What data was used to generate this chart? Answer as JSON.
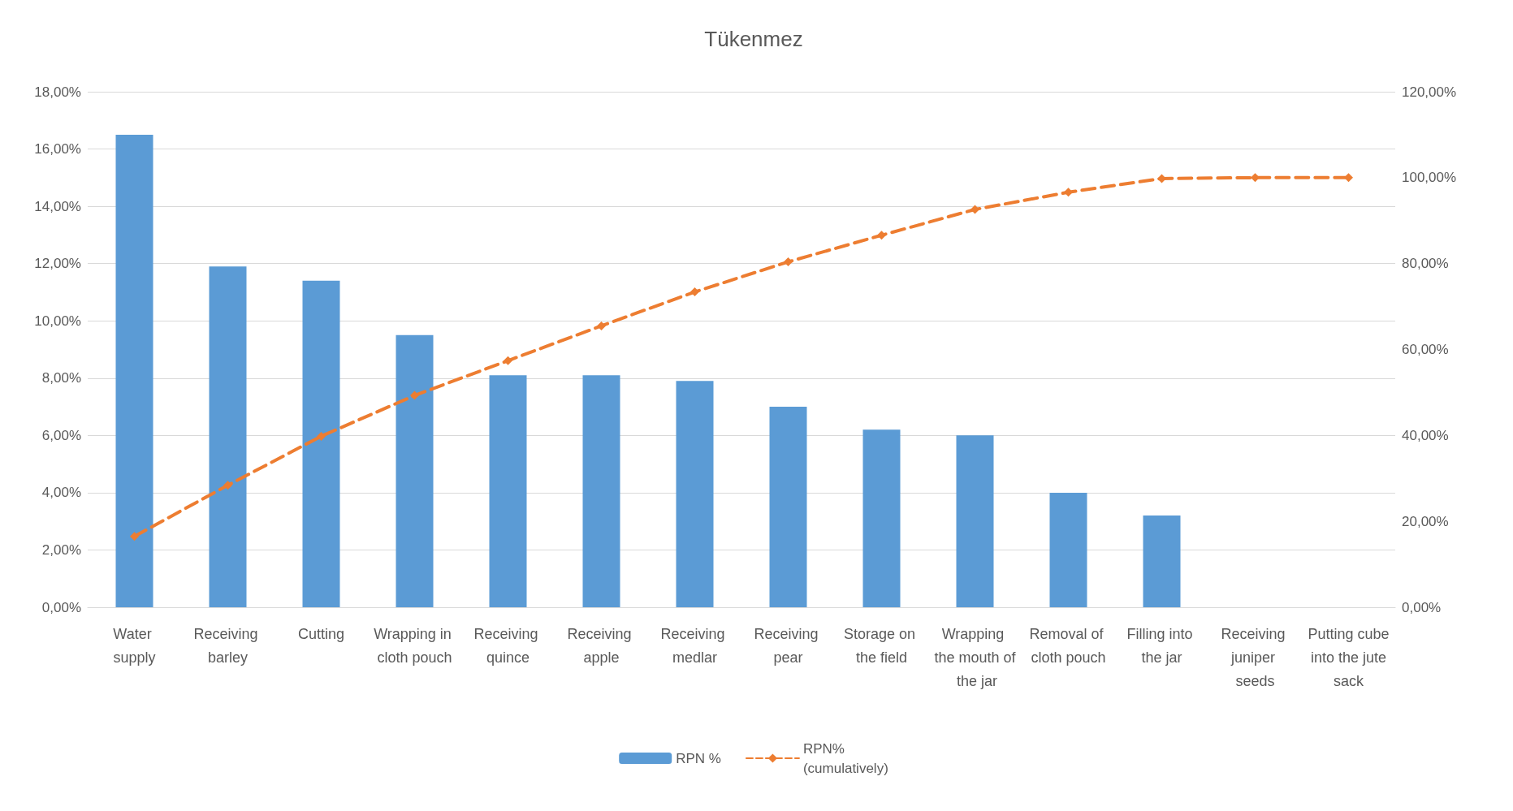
{
  "chart_data": {
    "type": "bar",
    "title": "Tükenmez",
    "categories": [
      "Water supply",
      "Receiving barley",
      "Cutting",
      "Wrapping in cloth pouch",
      "Receiving quince",
      "Receiving apple",
      "Receiving medlar",
      "Receiving pear",
      "Storage on the field",
      "Wrapping the mouth of the jar",
      "Removal of cloth pouch",
      "Filling into the jar",
      "Receiving juniper seeds",
      "Putting cube into the jute sack"
    ],
    "series": [
      {
        "name": "RPN %",
        "color": "#5b9bd5",
        "values": [
          16.5,
          11.9,
          11.4,
          9.5,
          8.1,
          8.1,
          7.9,
          7.0,
          6.2,
          6.0,
          4.0,
          3.2,
          0,
          0
        ]
      },
      {
        "name": "RPN%\n(cumulatively)",
        "type": "line",
        "axis": "y2",
        "color": "#ed7d31",
        "line_style": "dashed",
        "marker": "diamond",
        "values": [
          16.5,
          28.4,
          39.8,
          49.3,
          57.4,
          65.5,
          73.4,
          80.4,
          86.6,
          92.6,
          96.6,
          99.8,
          100,
          100
        ]
      }
    ],
    "ylim": [
      0,
      18
    ],
    "yticks": [
      {
        "value": 0,
        "label": "0,00%"
      },
      {
        "value": 2,
        "label": "2,00%"
      },
      {
        "value": 4,
        "label": "4,00%"
      },
      {
        "value": 6,
        "label": "6,00%"
      },
      {
        "value": 8,
        "label": "8,00%"
      },
      {
        "value": 10,
        "label": "10,00%"
      },
      {
        "value": 12,
        "label": "12,00%"
      },
      {
        "value": 14,
        "label": "14,00%"
      },
      {
        "value": 16,
        "label": "16,00%"
      },
      {
        "value": 18,
        "label": "18,00%"
      }
    ],
    "y2lim": [
      0,
      120
    ],
    "y2ticks": [
      {
        "value": 0,
        "label": "0,00%"
      },
      {
        "value": 20,
        "label": "20,00%"
      },
      {
        "value": 40,
        "label": "40,00%"
      },
      {
        "value": 60,
        "label": "60,00%"
      },
      {
        "value": 80,
        "label": "80,00%"
      },
      {
        "value": 100,
        "label": "100,00%"
      },
      {
        "value": 120,
        "label": "120,00%"
      }
    ],
    "grid": "y",
    "legend": "bottom"
  }
}
